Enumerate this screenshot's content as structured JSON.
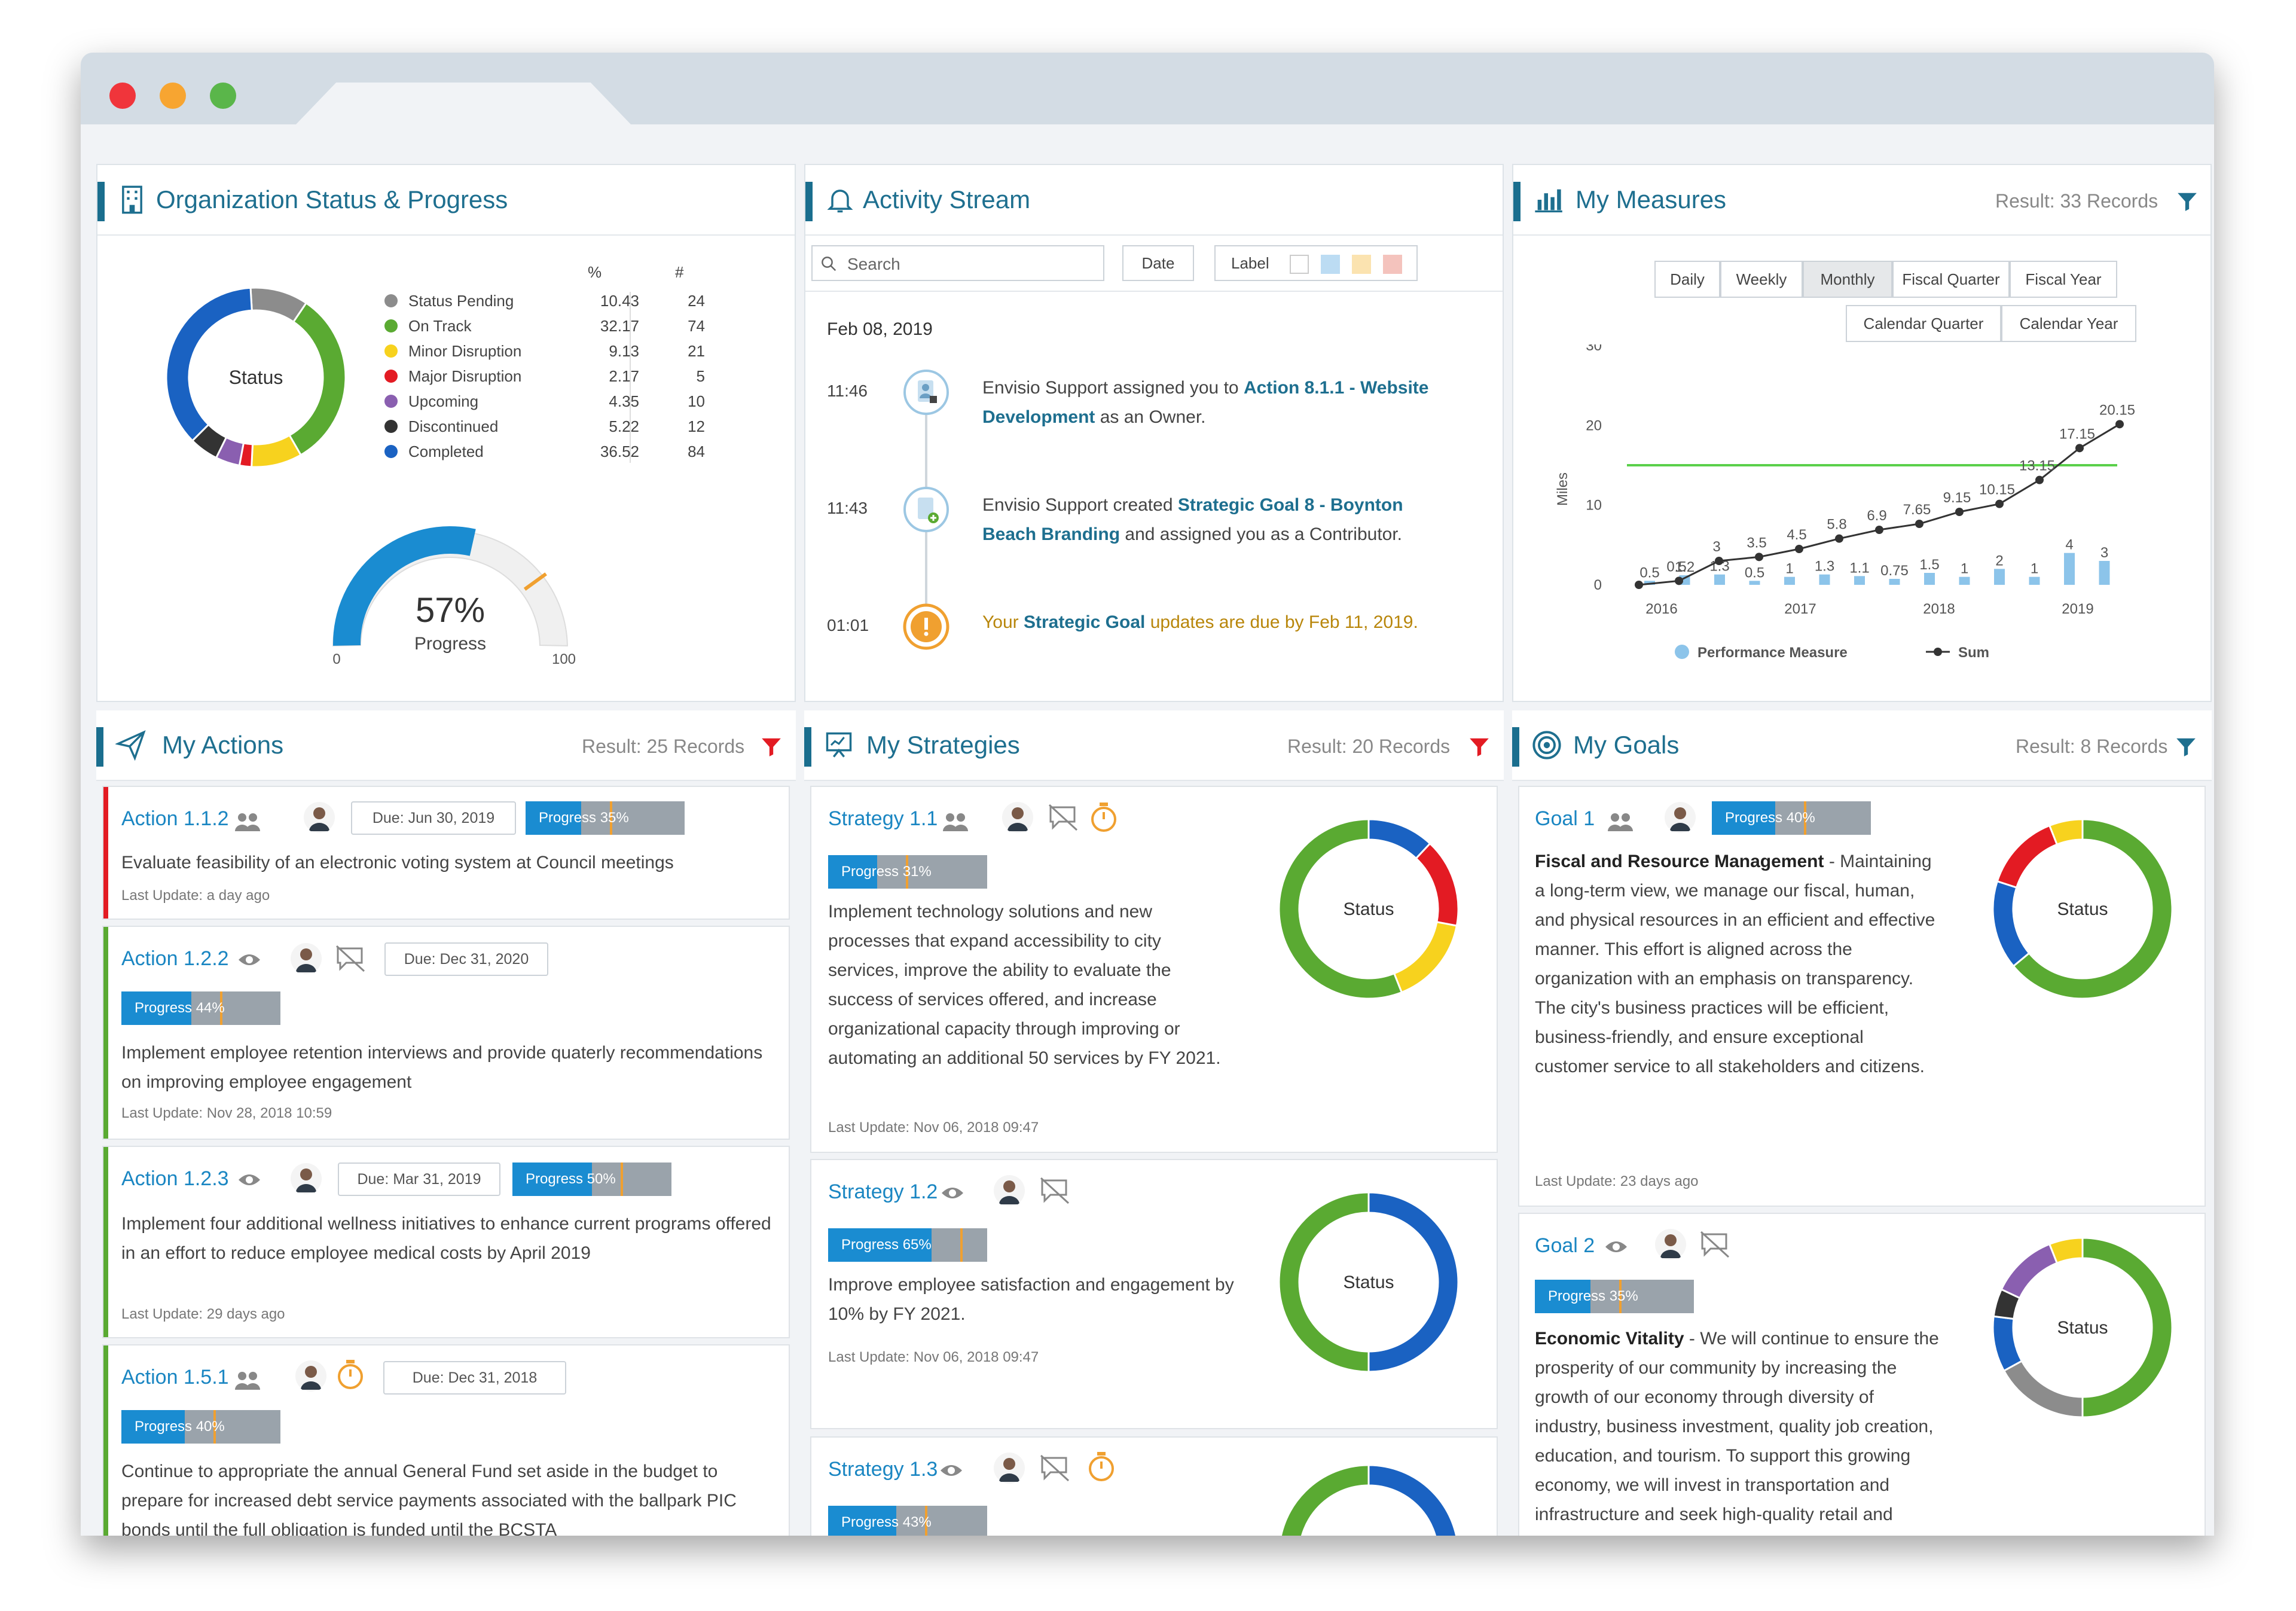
{
  "colors": {
    "accent": "#1a6e8e",
    "link": "#1a86c2",
    "progress_fill": "#1a8cd1",
    "progress_track": "#9aa3ab",
    "status_pending": "#8c8c8c",
    "on_track": "#5aaa32",
    "minor_disruption": "#f7d21e",
    "major_disruption": "#e31b23",
    "upcoming": "#8a5fb0",
    "discontinued": "#333333",
    "completed": "#1a62c2"
  },
  "org_status": {
    "title": "Organization Status & Progress",
    "donut_label": "Status",
    "col_pct": "%",
    "col_count": "#",
    "legend": [
      {
        "label": "Status Pending",
        "pct": "10.43",
        "count": "24",
        "color": "#8c8c8c"
      },
      {
        "label": "On Track",
        "pct": "32.17",
        "count": "74",
        "color": "#5aaa32"
      },
      {
        "label": "Minor Disruption",
        "pct": "9.13",
        "count": "21",
        "color": "#f7d21e"
      },
      {
        "label": "Major Disruption",
        "pct": "2.17",
        "count": "5",
        "color": "#e31b23"
      },
      {
        "label": "Upcoming",
        "pct": "4.35",
        "count": "10",
        "color": "#8a5fb0"
      },
      {
        "label": "Discontinued",
        "pct": "5.22",
        "count": "12",
        "color": "#333333"
      },
      {
        "label": "Completed",
        "pct": "36.52",
        "count": "84",
        "color": "#1a62c2"
      }
    ],
    "gauge_value": "57%",
    "gauge_fraction": 0.57,
    "gauge_label": "Progress",
    "gauge_min": "0",
    "gauge_max": "100"
  },
  "activity": {
    "title": "Activity Stream",
    "search_placeholder": "Search",
    "date_btn": "Date",
    "label_btn": "Label",
    "date_header": "Feb 08, 2019",
    "items": [
      {
        "time": "11:46",
        "pre": "Envisio Support assigned you to ",
        "link": "Action 8.1.1 - Website Development",
        "post": " as an Owner."
      },
      {
        "time": "11:43",
        "pre": "Envisio Support created ",
        "link": "Strategic Goal 8 - Boynton Beach Branding",
        "post": " and assigned you as a Contributor."
      },
      {
        "time": "01:01",
        "pre": "Your ",
        "link": "Strategic Goal",
        "post": " updates are due by Feb 11, 2019."
      }
    ]
  },
  "measures": {
    "title": "My Measures",
    "result": "Result: 33 Records",
    "buttons_row1": [
      "Daily",
      "Weekly",
      "Monthly",
      "Fiscal Quarter",
      "Fiscal Year"
    ],
    "buttons_row2": [
      "Calendar Quarter",
      "Calendar Year"
    ],
    "active_button": "Monthly",
    "legend_pm": "Performance Measure",
    "legend_sum": "Sum"
  },
  "chart_data": {
    "type": "line",
    "ylabel": "Miles",
    "xlabel": "",
    "ylim": [
      0,
      30
    ],
    "yticks": [
      "0",
      "10",
      "20",
      "30"
    ],
    "xticks": [
      "2016",
      "2017",
      "2018",
      "2019"
    ],
    "target_line": 15,
    "series": [
      {
        "name": "Sum",
        "values": [
          0,
          0.5,
          3,
          3.5,
          4.5,
          5.8,
          6.9,
          7.65,
          9.15,
          10.15,
          13.15,
          17.15,
          20.15
        ],
        "labels": [
          "",
          "0.5",
          "3",
          "3.5",
          "4.5",
          "5.8",
          "6.9",
          "7.65",
          "9.15",
          "10.15",
          "13.15",
          "17.15",
          "20.15"
        ]
      },
      {
        "name": "Performance Measure",
        "values": [
          0.5,
          1.2,
          1.3,
          0.5,
          1,
          1.3,
          1.1,
          0.75,
          1.5,
          1,
          2,
          1,
          4,
          3
        ],
        "labels": [
          "0.5",
          "1.2",
          "1.3",
          "0.5",
          "1",
          "1.3",
          "1.1",
          "0.75",
          "1.5",
          "1",
          "2",
          "1",
          "4",
          "3"
        ]
      }
    ]
  },
  "actions": {
    "title": "My Actions",
    "result": "Result: 25 Records",
    "cards": [
      {
        "id": "Action 1.1.2",
        "due": "Due: Jun 30, 2019",
        "progress": "Progress 35%",
        "pct": 35,
        "text": "Evaluate feasibility of an electronic voting system at Council meetings",
        "update": "Last Update: a day ago",
        "accent": "#e31b23"
      },
      {
        "id": "Action 1.2.2",
        "due": "Due: Dec 31, 2020",
        "progress": "Progress 44%",
        "pct": 44,
        "text": " Implement employee retention interviews and provide quaterly recommendations on improving employee engagement",
        "update": "Last Update: Nov 28, 2018 10:59",
        "accent": "#5aaa32"
      },
      {
        "id": "Action 1.2.3",
        "due": "Due: Mar 31, 2019",
        "progress": "Progress 50%",
        "pct": 50,
        "text": "Implement four additional wellness initiatives to enhance current programs offered in an effort to reduce employee medical costs by April 2019",
        "update": "Last Update: 29 days ago",
        "accent": "#5aaa32"
      },
      {
        "id": "Action 1.5.1",
        "due": "Due: Dec 31, 2018",
        "progress": "Progress 40%",
        "pct": 40,
        "text": "Continue to appropriate the annual General Fund set aside in the budget to prepare for increased debt service payments associated with the ballpark PIC bonds until the full obligation is funded until the BCSTA",
        "update": "",
        "accent": "#5aaa32"
      }
    ]
  },
  "strategies": {
    "title": "My Strategies",
    "result": "Result: 20 Records",
    "donut_label": "Status",
    "cards": [
      {
        "id": "Strategy 1.1",
        "progress": "Progress 31%",
        "pct": 31,
        "text": "Implement technology solutions and new processes that expand accessibility to city services, improve the ability to evaluate the success of services offered, and increase organizational capacity through improving or automating an additional 50 services by FY 2021.",
        "update": "Last Update: Nov 06, 2018 09:47"
      },
      {
        "id": "Strategy 1.2",
        "progress": "Progress 65%",
        "pct": 65,
        "text": "Improve employee satisfaction and engagement by 10% by FY 2021.",
        "update": "Last Update: Nov 06, 2018 09:47"
      },
      {
        "id": "Strategy 1.3",
        "progress": "Progress 43%",
        "pct": 43,
        "text": "",
        "update": ""
      }
    ]
  },
  "goals": {
    "title": "My Goals",
    "result": "Result: 8 Records",
    "donut_label": "Status",
    "cards": [
      {
        "id": "Goal 1",
        "progress": "Progress 40%",
        "pct": 40,
        "heading": "Fiscal and Resource Management",
        "text": "Maintaining a long-term view, we manage our fiscal, human, and physical resources in an efficient and effective manner. This effort is aligned across the organization with an emphasis on transparency. The city's business practices will be efficient, business-friendly, and ensure exceptional customer service to all stakeholders and citizens.",
        "update": "Last Update: 23 days ago"
      },
      {
        "id": "Goal 2",
        "progress": "Progress 35%",
        "pct": 35,
        "heading": "Economic Vitality",
        "text": "We will continue to ensure the prosperity of our community by increasing the growth of our economy through diversity of industry, business investment, quality job creation, education, and tourism. To support this growing economy, we will invest in transportation and infrastructure and seek high-quality retail and entertainment opportunities.",
        "update": ""
      }
    ]
  }
}
